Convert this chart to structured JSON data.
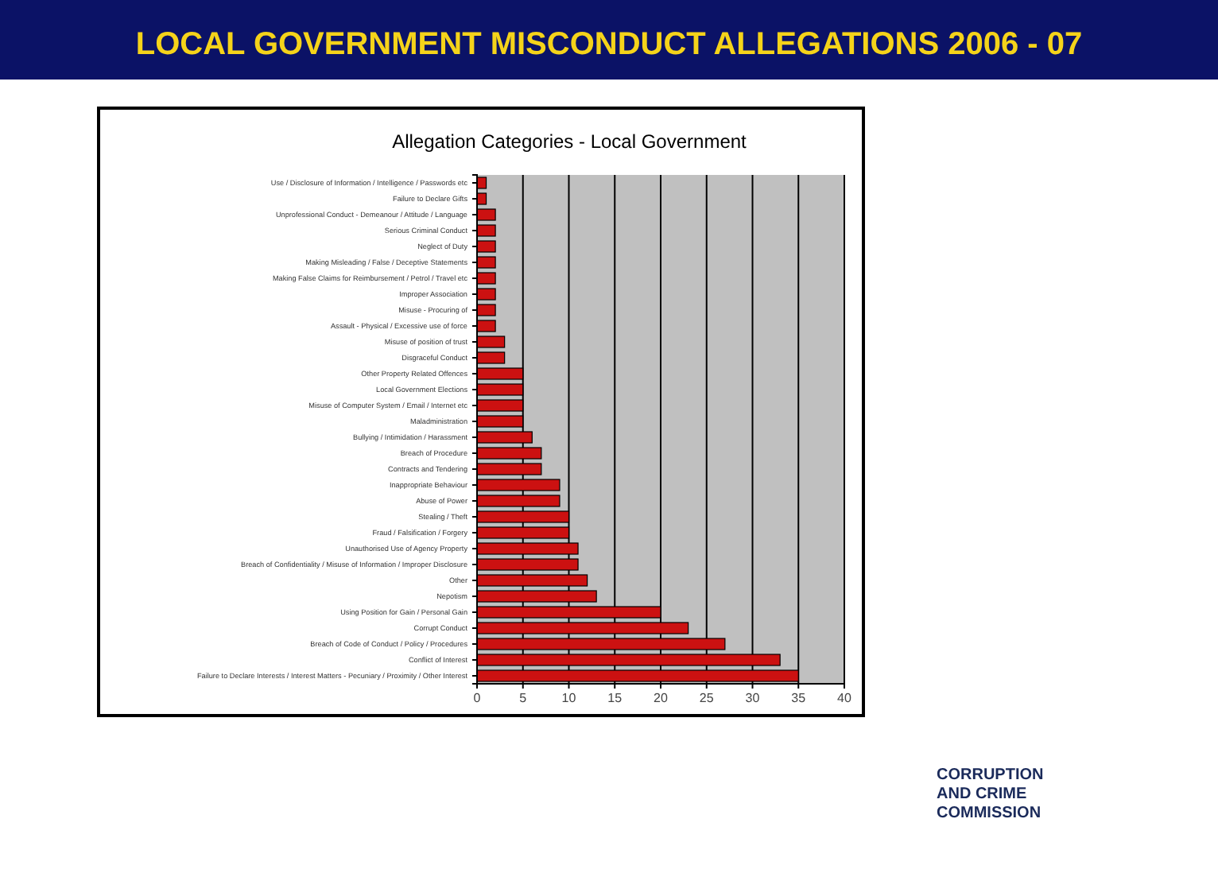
{
  "chart_data": {
    "type": "bar",
    "orientation": "horizontal",
    "title": "LOCAL GOVERNMENT MISCONDUCT ALLEGATIONS 2006 - 07",
    "subtitle": "Allegation Categories - Local Government",
    "categories": [
      "Use / Disclosure of Information / Intelligence / Passwords etc",
      "Failure to Declare Gifts",
      "Unprofessional Conduct - Demeanour / Attitude / Language",
      "Serious Criminal Conduct",
      "Neglect of Duty",
      "Making Misleading / False / Deceptive Statements",
      "Making False Claims for Reimbursement / Petrol / Travel etc",
      "Improper Association",
      "Misuse - Procuring of",
      "Assault - Physical / Excessive use of force",
      "Misuse of position of trust",
      "Disgraceful Conduct",
      "Other Property Related Offences",
      "Local Government Elections",
      "Misuse of Computer System / Email / Internet etc",
      "Maladministration",
      "Bullying / Intimidation / Harassment",
      "Breach of Procedure",
      "Contracts and Tendering",
      "Inappropriate Behaviour",
      "Abuse of Power",
      "Stealing / Theft",
      "Fraud / Falsification / Forgery",
      "Unauthorised Use of Agency Property",
      "Breach of Confidentiality / Misuse of Information / Improper Disclosure",
      "Other",
      "Nepotism",
      "Using Position for Gain / Personal Gain",
      "Corrupt Conduct",
      "Breach of Code of Conduct / Policy / Procedures",
      "Conflict of Interest",
      "Failure to Declare Interests / Interest Matters - Pecuniary / Proximity / Other Interest"
    ],
    "values": [
      1,
      1,
      2,
      2,
      2,
      2,
      2,
      2,
      2,
      2,
      3,
      3,
      5,
      5,
      5,
      5,
      6,
      7,
      7,
      9,
      9,
      10,
      10,
      11,
      11,
      12,
      13,
      20,
      23,
      27,
      33,
      35
    ],
    "color": "#cc1111",
    "xlim": [
      0,
      40
    ],
    "xticks": [
      0,
      5,
      10,
      15,
      20,
      25,
      30,
      35,
      40
    ],
    "grid": "x",
    "annotations": [
      "CORRUPTION AND CRIME COMMISSION"
    ]
  }
}
